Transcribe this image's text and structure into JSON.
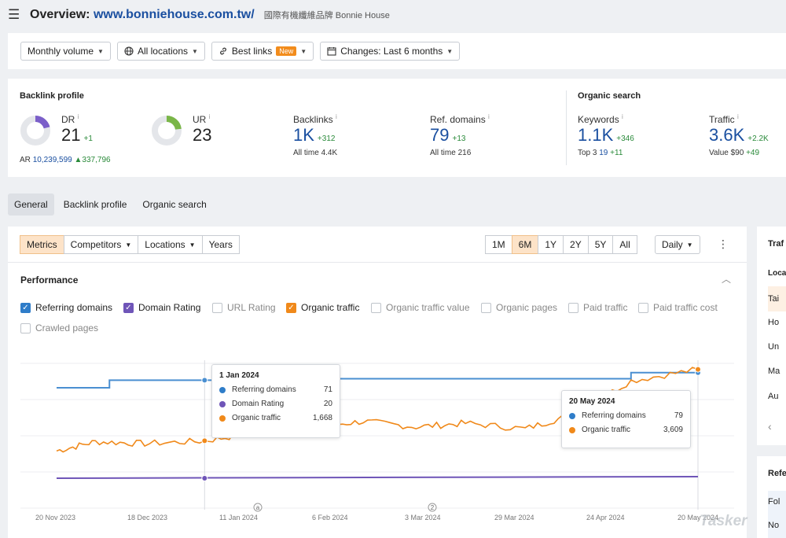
{
  "header": {
    "title_prefix": "Overview: ",
    "url": "www.bonniehouse.com.tw/",
    "site_name": "國際有機纖維品牌 Bonnie House",
    "menu_icon": "hamburger-icon"
  },
  "filters": {
    "volume": "Monthly volume",
    "locations": "All locations",
    "best_links": "Best links",
    "best_links_badge": "New",
    "changes": "Changes: Last 6 months"
  },
  "backlink_profile": {
    "section_label": "Backlink profile",
    "dr": {
      "label": "DR",
      "value": "21",
      "delta": "+1",
      "fill": 0.21,
      "color": "#7b5fc9"
    },
    "ur": {
      "label": "UR",
      "value": "23",
      "fill": 0.23,
      "color": "#7ab648"
    },
    "ar": {
      "label": "AR",
      "value": "10,239,599",
      "delta": "▲337,796"
    },
    "backlinks": {
      "label": "Backlinks",
      "value": "1K",
      "delta": "+312",
      "sub_label": "All time",
      "sub_value": "4.4K"
    },
    "ref_domains": {
      "label": "Ref. domains",
      "value": "79",
      "delta": "+13",
      "sub_label": "All time",
      "sub_value": "216"
    }
  },
  "organic_search": {
    "section_label": "Organic search",
    "keywords": {
      "label": "Keywords",
      "value": "1.1K",
      "delta": "+346",
      "sub_label": "Top 3",
      "sub_value": "19",
      "sub_delta": "+11"
    },
    "traffic": {
      "label": "Traffic",
      "value": "3.6K",
      "delta": "+2.2K",
      "sub_label": "Value",
      "sub_value": "$90",
      "sub_delta": "+49"
    }
  },
  "tabs": [
    "General",
    "Backlink profile",
    "Organic search"
  ],
  "toolbar": {
    "metrics": "Metrics",
    "competitors": "Competitors",
    "locations": "Locations",
    "years": "Years",
    "ranges": [
      "1M",
      "6M",
      "1Y",
      "2Y",
      "5Y",
      "All"
    ],
    "active_range": "6M",
    "interval": "Daily"
  },
  "performance": {
    "title": "Performance",
    "checkboxes": [
      {
        "label": "Referring domains",
        "checked": true,
        "color": "#2f7dc9"
      },
      {
        "label": "Domain Rating",
        "checked": true,
        "color": "#6f55b8"
      },
      {
        "label": "URL Rating",
        "checked": false
      },
      {
        "label": "Organic traffic",
        "checked": true,
        "color": "#f0891a"
      },
      {
        "label": "Organic traffic value",
        "checked": false
      },
      {
        "label": "Organic pages",
        "checked": false
      },
      {
        "label": "Paid traffic",
        "checked": false
      },
      {
        "label": "Paid traffic cost",
        "checked": false
      },
      {
        "label": "Crawled pages",
        "checked": false
      }
    ]
  },
  "chart_data": {
    "type": "line",
    "x_tick_labels": [
      "20 Nov 2023",
      "18 Dec 2023",
      "11 Jan 2024",
      "6 Feb 2024",
      "3 Mar 2024",
      "29 Mar 2024",
      "24 Apr 2024",
      "20 May 2024"
    ],
    "annotations": [
      "a",
      "2"
    ],
    "series": [
      {
        "name": "Referring domains",
        "color": "#4a8fd1",
        "x": [
          "20 Nov 2023",
          "1 Dec 2023",
          "5 Dec 2023",
          "1 Jan 2024",
          "20 Jan 2024",
          "1 Feb 2024",
          "1 May 2024",
          "20 May 2024"
        ],
        "values": [
          66,
          66,
          71,
          71,
          72,
          72,
          76,
          79
        ]
      },
      {
        "name": "Domain Rating",
        "color": "#6f55b8",
        "x": [
          "20 Nov 2023",
          "20 May 2024"
        ],
        "values": [
          20,
          21
        ]
      },
      {
        "name": "Organic traffic",
        "color": "#f0891a",
        "x": [
          "20 Nov 2023",
          "1 Dec 2023",
          "15 Dec 2023",
          "1 Jan 2024",
          "15 Jan 2024",
          "1 Feb 2024",
          "15 Feb 2024",
          "1 Mar 2024",
          "15 Mar 2024",
          "1 Apr 2024",
          "15 Apr 2024",
          "1 May 2024",
          "20 May 2024"
        ],
        "values": [
          1400,
          1650,
          1600,
          1668,
          1900,
          2050,
          2200,
          2050,
          2150,
          2000,
          2400,
          3300,
          3609
        ]
      }
    ],
    "tooltips": [
      {
        "date": "1 Jan 2024",
        "rows": [
          {
            "label": "Referring domains",
            "value": "71",
            "color": "#2f7dc9"
          },
          {
            "label": "Domain Rating",
            "value": "20",
            "color": "#6f55b8"
          },
          {
            "label": "Organic traffic",
            "value": "1,668",
            "color": "#f0891a"
          }
        ]
      },
      {
        "date": "20 May 2024",
        "rows": [
          {
            "label": "Referring domains",
            "value": "79",
            "color": "#2f7dc9"
          },
          {
            "label": "Organic traffic",
            "value": "3,609",
            "color": "#f0891a"
          }
        ]
      }
    ]
  },
  "side_panel": {
    "title_1": "Traf",
    "sub_1": "Loca",
    "rows": [
      "Tai",
      "Ho",
      "Un",
      "Ma",
      "Au"
    ],
    "title_2": "Refe",
    "rows_2": [
      "Fol",
      "No"
    ]
  },
  "watermark": "Tasker"
}
